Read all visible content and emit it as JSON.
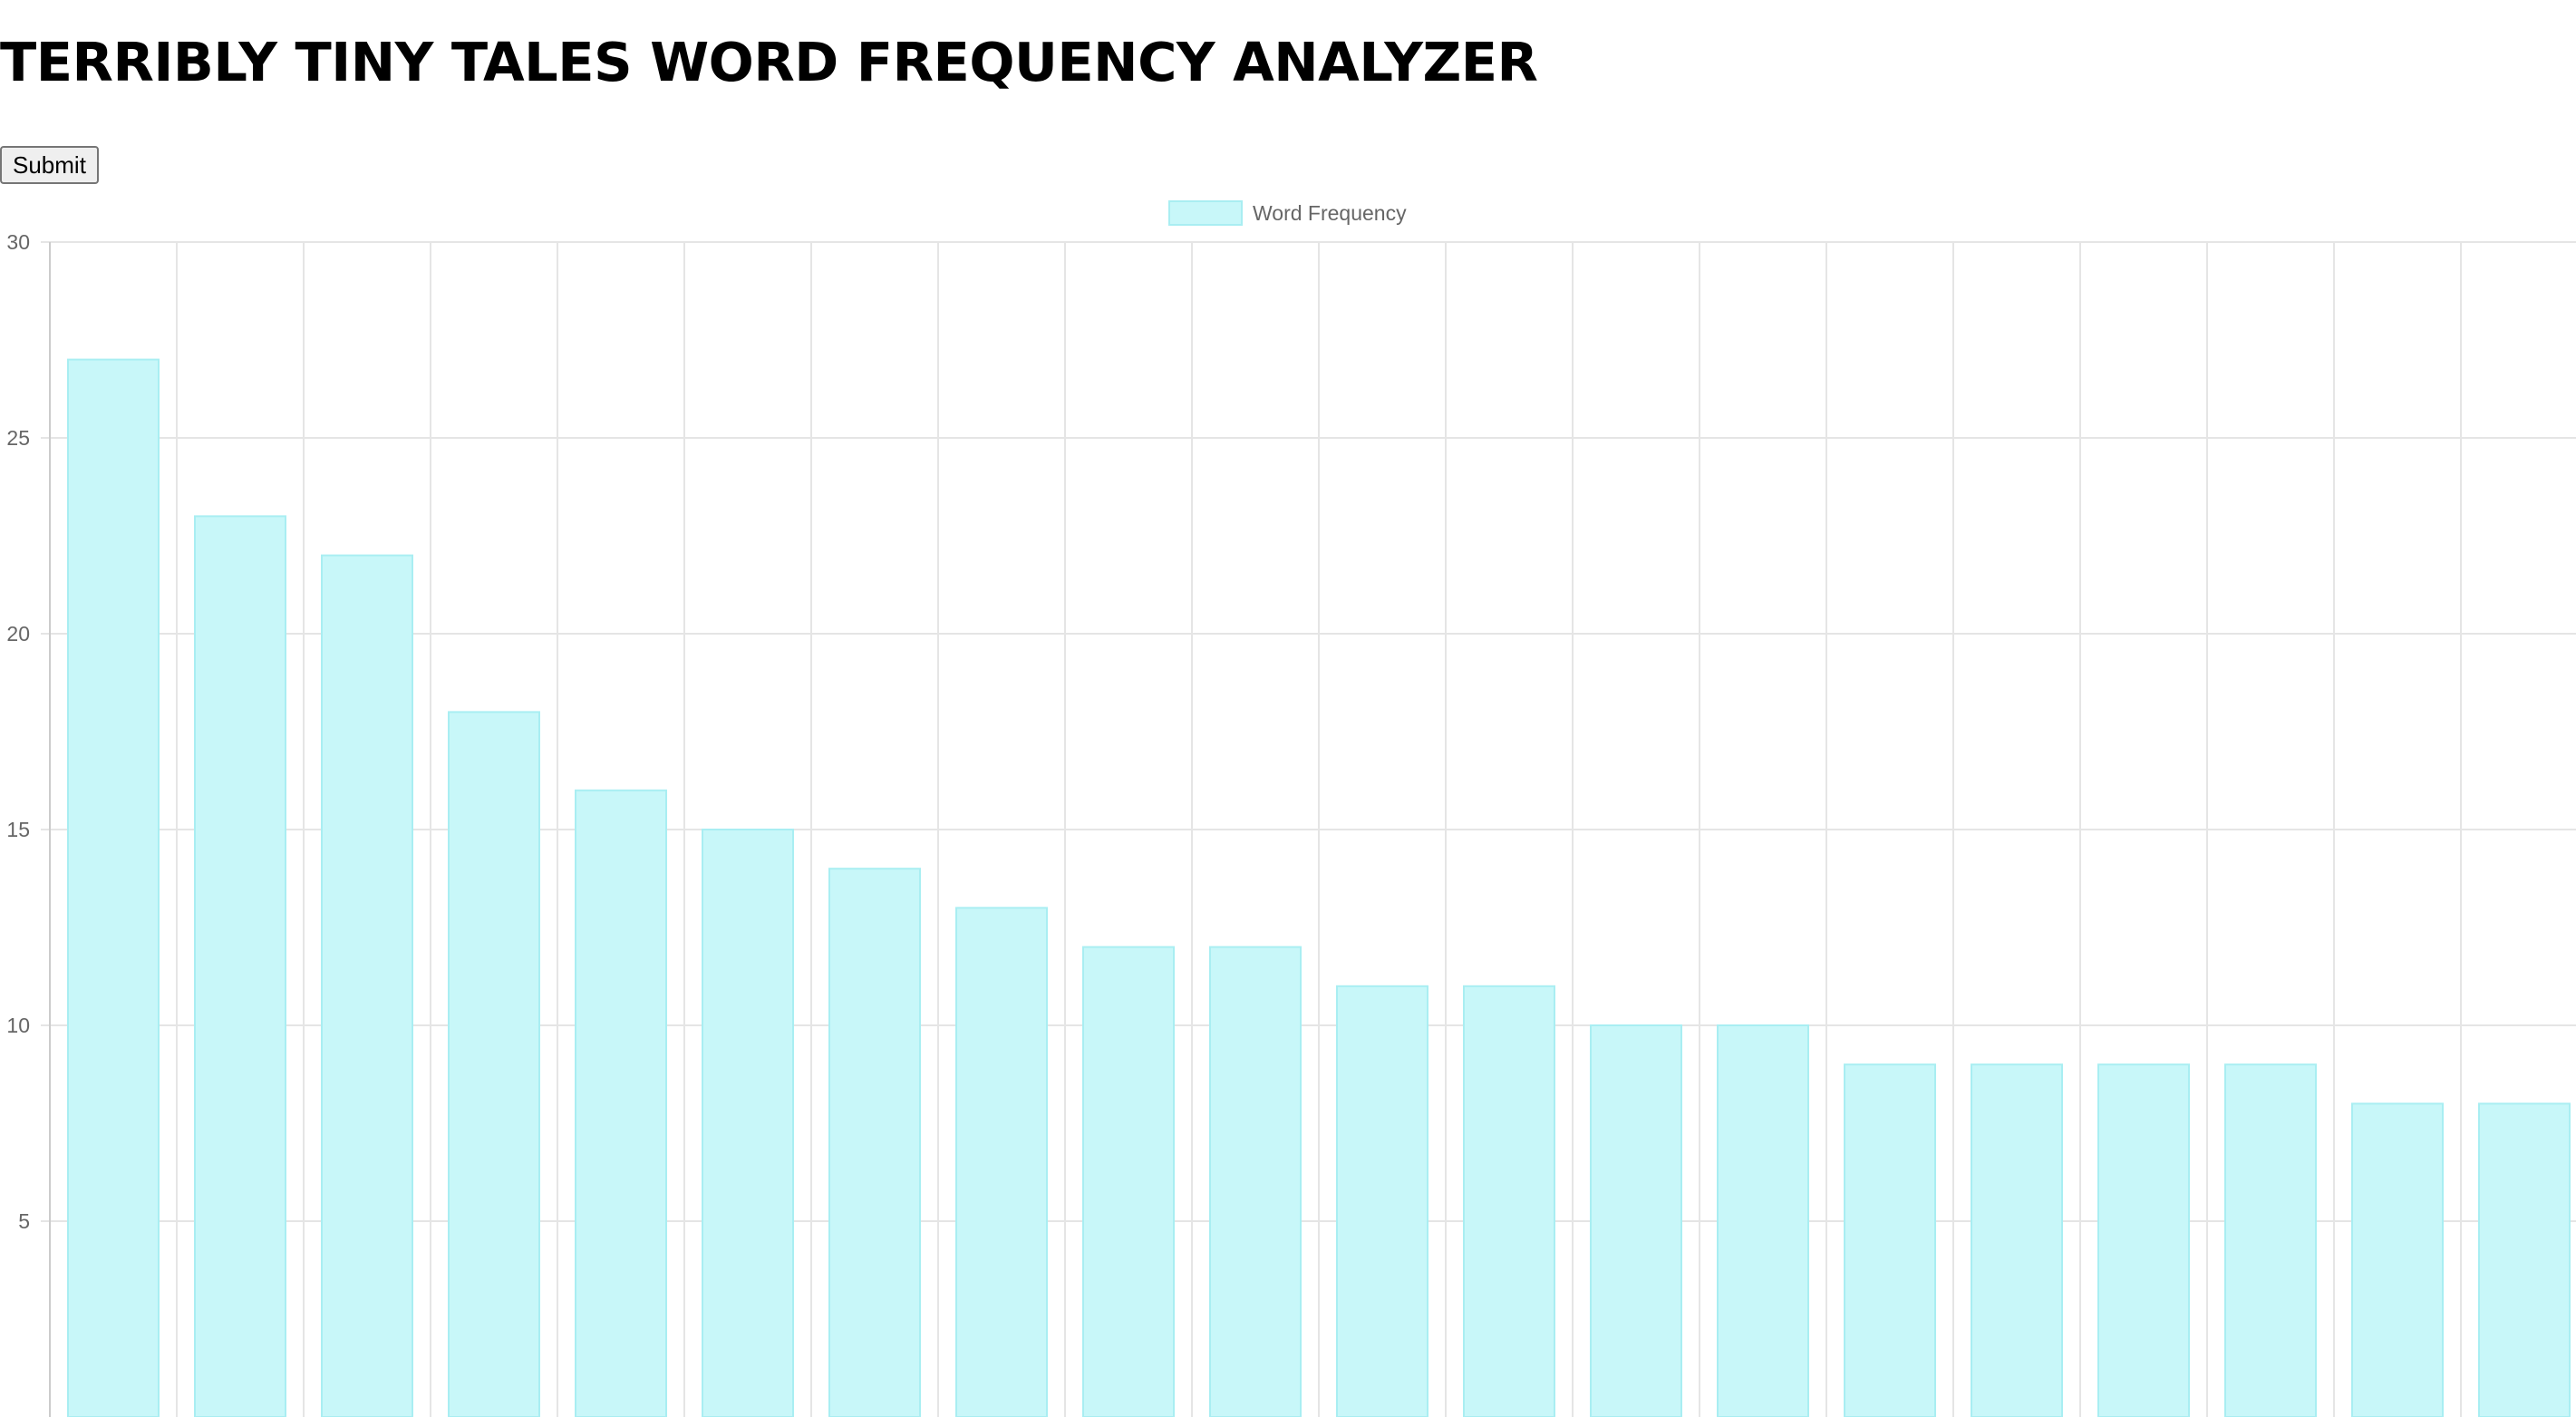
{
  "header": {
    "title": "TERRIBLY TINY TALES WORD FREQUENCY ANALYZER"
  },
  "form": {
    "submit_label": "Submit"
  },
  "chart_data": {
    "type": "bar",
    "title": "",
    "xlabel": "",
    "ylabel": "",
    "ylim": [
      0,
      30
    ],
    "yticks": [
      "30",
      "25",
      "20",
      "15",
      "10",
      "5"
    ],
    "grid": true,
    "legend_position": "top-center",
    "categories": [
      "",
      "",
      "",
      "",
      "",
      "",
      "",
      "",
      "",
      "",
      "",
      "",
      "",
      "",
      "",
      "",
      "",
      "",
      "",
      ""
    ],
    "series": [
      {
        "name": "Word Frequency",
        "color": "#c8f7f9",
        "border_color": "#a9eef2",
        "values": [
          27,
          23,
          22,
          18,
          16,
          15,
          14,
          13,
          12,
          12,
          11,
          11,
          10,
          10,
          9,
          9,
          9,
          9,
          8,
          8
        ]
      }
    ]
  }
}
